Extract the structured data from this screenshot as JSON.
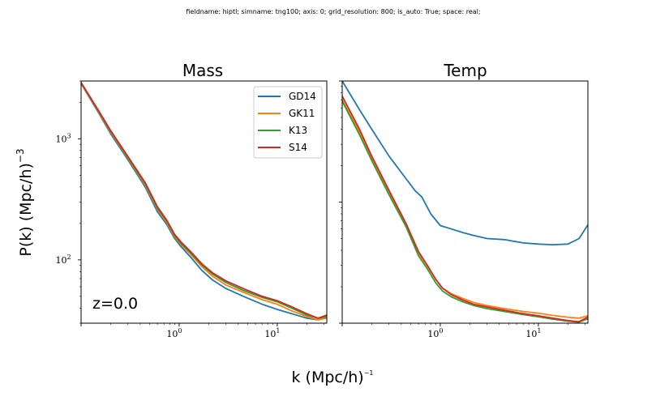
{
  "suptitle": "fieldname: hiptl; simname: tng100; axis: 0; grid_resolution: 800; is_auto: True; space: real;",
  "xlabel": "k (Mpc/h)",
  "xlabel_exp": "−1",
  "ylabel": "P(k) (Mpc/h)",
  "ylabel_exp": "−3",
  "annotation": "z=0.0",
  "ticks": {
    "x": [
      {
        "value": 1,
        "base": "10",
        "exp": "0"
      },
      {
        "value": 10,
        "base": "10",
        "exp": "1"
      }
    ],
    "y": [
      {
        "value": 100,
        "base": "10",
        "exp": "2"
      },
      {
        "value": 1000,
        "base": "10",
        "exp": "3"
      }
    ]
  },
  "colors": {
    "GD14": "#1f77b4",
    "GK11": "#ff7f0e",
    "K13": "#2ca02c",
    "S14": "#d62728"
  },
  "chart_data": [
    {
      "type": "line",
      "title": "Mass",
      "xscale": "log",
      "yscale": "log",
      "xlim": [
        0.1,
        32
      ],
      "ylim": [
        30,
        3000
      ],
      "legend": "top-right",
      "series": [
        {
          "name": "GD14",
          "x": [
            0.1,
            0.15,
            0.2,
            0.3,
            0.45,
            0.6,
            0.75,
            0.9,
            1.05,
            1.3,
            1.7,
            2.2,
            3,
            4.5,
            7,
            10,
            14,
            20,
            26,
            32
          ],
          "y": [
            2850,
            1650,
            1100,
            670,
            400,
            250,
            195,
            150,
            128,
            106,
            82,
            68,
            58,
            50,
            43,
            39,
            36,
            33,
            32,
            34
          ]
        },
        {
          "name": "GK11",
          "x": [
            0.1,
            0.15,
            0.2,
            0.3,
            0.45,
            0.6,
            0.75,
            0.9,
            1.05,
            1.3,
            1.7,
            2.2,
            3,
            4.5,
            7,
            10,
            14,
            20,
            26,
            32
          ],
          "y": [
            2870,
            1680,
            1130,
            690,
            415,
            262,
            202,
            155,
            133,
            112,
            88,
            73,
            62,
            54,
            47,
            43,
            38,
            34,
            32,
            33
          ]
        },
        {
          "name": "K13",
          "x": [
            0.1,
            0.15,
            0.2,
            0.3,
            0.45,
            0.6,
            0.75,
            0.9,
            1.05,
            1.3,
            1.7,
            2.2,
            3,
            4.5,
            7,
            10,
            14,
            20,
            26,
            32
          ],
          "y": [
            2900,
            1700,
            1150,
            700,
            425,
            268,
            208,
            158,
            136,
            115,
            91,
            76,
            65,
            56,
            49,
            45,
            40,
            35,
            33,
            34
          ]
        },
        {
          "name": "S14",
          "x": [
            0.1,
            0.15,
            0.2,
            0.3,
            0.45,
            0.6,
            0.75,
            0.9,
            1.05,
            1.3,
            1.7,
            2.2,
            3,
            4.5,
            7,
            10,
            14,
            20,
            26,
            32
          ],
          "y": [
            2920,
            1720,
            1170,
            715,
            435,
            275,
            212,
            162,
            140,
            118,
            93,
            78,
            67,
            58,
            50,
            46,
            41,
            36,
            33,
            35
          ]
        }
      ]
    },
    {
      "type": "line",
      "title": "Temp",
      "xscale": "log",
      "yscale": "log",
      "xlim": [
        0.1,
        32
      ],
      "ylim": [
        1,
        100
      ],
      "yticks_labeled": false,
      "series": [
        {
          "name": "GD14",
          "x": [
            0.1,
            0.15,
            0.2,
            0.3,
            0.45,
            0.55,
            0.65,
            0.8,
            1,
            1.3,
            1.7,
            2.2,
            3,
            4.5,
            7,
            10,
            14,
            20,
            26,
            32
          ],
          "y": [
            100,
            58,
            40,
            24,
            15.5,
            12.5,
            11,
            8,
            6.4,
            6,
            5.6,
            5.3,
            5,
            4.9,
            4.6,
            4.5,
            4.45,
            4.5,
            5,
            6.5
          ]
        },
        {
          "name": "GK11",
          "x": [
            0.1,
            0.15,
            0.2,
            0.3,
            0.45,
            0.6,
            0.75,
            0.9,
            1.05,
            1.3,
            1.7,
            2.2,
            3,
            4.5,
            7,
            10,
            14,
            20,
            26,
            32
          ],
          "y": [
            70,
            38,
            23,
            12,
            6.5,
            3.8,
            2.9,
            2.3,
            1.95,
            1.75,
            1.6,
            1.48,
            1.4,
            1.32,
            1.25,
            1.21,
            1.16,
            1.12,
            1.1,
            1.15
          ]
        },
        {
          "name": "K13",
          "x": [
            0.1,
            0.15,
            0.2,
            0.3,
            0.45,
            0.6,
            0.75,
            0.9,
            1.05,
            1.3,
            1.7,
            2.2,
            3,
            4.5,
            7,
            10,
            14,
            20,
            26,
            32
          ],
          "y": [
            68,
            36,
            22,
            11.5,
            6.2,
            3.6,
            2.75,
            2.15,
            1.85,
            1.65,
            1.5,
            1.4,
            1.32,
            1.25,
            1.18,
            1.13,
            1.08,
            1.04,
            1.02,
            1.09
          ]
        },
        {
          "name": "S14",
          "x": [
            0.1,
            0.15,
            0.2,
            0.3,
            0.45,
            0.6,
            0.75,
            0.9,
            1.05,
            1.3,
            1.7,
            2.2,
            3,
            4.5,
            7,
            10,
            14,
            20,
            26,
            32
          ],
          "y": [
            75,
            40,
            24,
            12.5,
            6.6,
            3.9,
            2.95,
            2.3,
            1.95,
            1.72,
            1.55,
            1.43,
            1.36,
            1.28,
            1.2,
            1.15,
            1.1,
            1.05,
            1.03,
            1.12
          ]
        }
      ]
    }
  ]
}
